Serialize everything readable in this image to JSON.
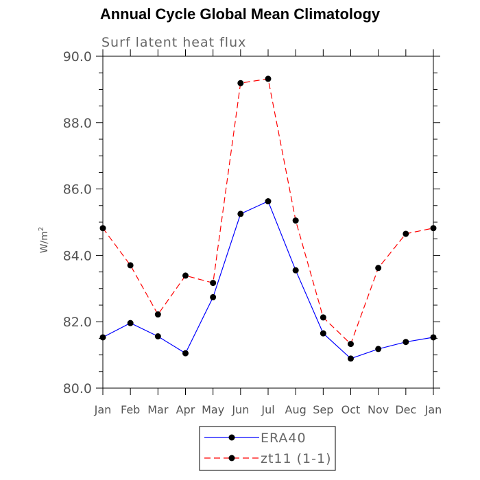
{
  "chart_data": {
    "type": "line",
    "title": "Annual Cycle Global Mean Climatology",
    "subtitle": "Surf latent heat flux",
    "ylabel": "W/m",
    "ylabel_sup": "2",
    "xlabel": "",
    "categories": [
      "Jan",
      "Feb",
      "Mar",
      "Apr",
      "May",
      "Jun",
      "Jul",
      "Aug",
      "Sep",
      "Oct",
      "Nov",
      "Dec",
      "Jan"
    ],
    "ylim": [
      80.0,
      90.0
    ],
    "yticks": [
      "80.0",
      "82.0",
      "84.0",
      "86.0",
      "88.0",
      "90.0"
    ],
    "series": [
      {
        "name": "ERA40",
        "color": "#0000ff",
        "dash": "solid",
        "values": [
          81.53,
          81.96,
          81.56,
          81.05,
          82.74,
          85.25,
          85.63,
          83.55,
          81.65,
          80.89,
          81.18,
          81.39,
          81.53
        ]
      },
      {
        "name": "zt11 (1-1)",
        "color": "#ff0000",
        "dash": "dashed",
        "values": [
          84.82,
          83.7,
          82.22,
          83.39,
          83.17,
          89.19,
          89.32,
          85.05,
          82.13,
          81.33,
          83.62,
          84.65,
          84.82
        ]
      }
    ],
    "legend_position": "bottom-center"
  }
}
